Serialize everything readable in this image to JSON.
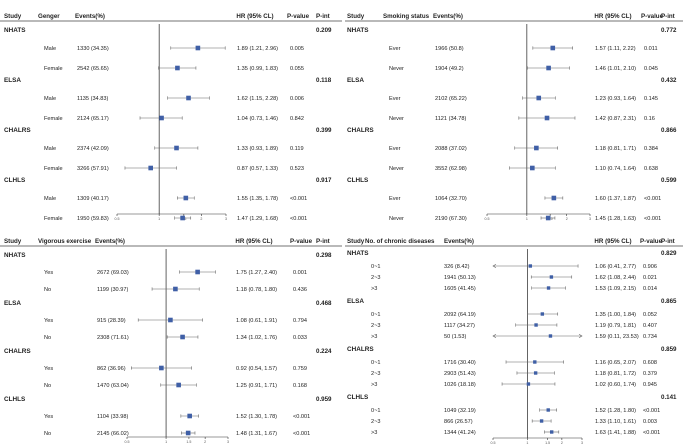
{
  "chart_data": [
    {
      "type": "forest",
      "column_headers": {
        "study": "Study",
        "group": "Genger",
        "events": "Events(%)",
        "hr": "HR (95% CL)",
        "p": "P-value",
        "pint": "P-int"
      },
      "axis": {
        "min": 0.5,
        "max": 3,
        "ref": 1,
        "ticks": [
          0.5,
          1,
          1.5,
          2,
          3
        ],
        "tick_labels": [
          "0.5",
          "1",
          "1.5",
          "2",
          "3"
        ]
      },
      "groups": [
        {
          "study": "NHATS",
          "p_int": "0.209",
          "rows": [
            {
              "label": "Male",
              "events": "1330 (34.35)",
              "hr": 1.89,
              "lo": 1.21,
              "hi": 2.96,
              "hr_text": "1.89 (1.21, 2.96)",
              "p": "0.005"
            },
            {
              "label": "Female",
              "events": "2542 (65.65)",
              "hr": 1.35,
              "lo": 0.99,
              "hi": 1.83,
              "hr_text": "1.35 (0.99, 1.83)",
              "p": "0.055"
            }
          ]
        },
        {
          "study": "ELSA",
          "p_int": "0.118",
          "rows": [
            {
              "label": "Male",
              "events": "1135 (34.83)",
              "hr": 1.62,
              "lo": 1.15,
              "hi": 2.28,
              "hr_text": "1.62 (1.15, 2.28)",
              "p": "0.006"
            },
            {
              "label": "Female",
              "events": "2124 (65.17)",
              "hr": 1.04,
              "lo": 0.73,
              "hi": 1.46,
              "hr_text": "1.04 (0.73, 1.46)",
              "p": "0.842"
            }
          ]
        },
        {
          "study": "CHALRS",
          "p_int": "0.399",
          "rows": [
            {
              "label": "Male",
              "events": "2374 (42.09)",
              "hr": 1.33,
              "lo": 0.93,
              "hi": 1.89,
              "hr_text": "1.33 (0.93, 1.89)",
              "p": "0.119"
            },
            {
              "label": "Female",
              "events": "3266 (57.91)",
              "hr": 0.87,
              "lo": 0.57,
              "hi": 1.33,
              "hr_text": "0.87 (0.57, 1.33)",
              "p": "0.523"
            }
          ]
        },
        {
          "study": "CLHLS",
          "p_int": "0.917",
          "rows": [
            {
              "label": "Male",
              "events": "1309 (40.17)",
              "hr": 1.55,
              "lo": 1.35,
              "hi": 1.78,
              "hr_text": "1.55 (1.35, 1.78)",
              "p": "<0.001"
            },
            {
              "label": "Female",
              "events": "1950 (59.83)",
              "hr": 1.47,
              "lo": 1.29,
              "hi": 1.68,
              "hr_text": "1.47 (1.29, 1.68)",
              "p": "<0.001"
            }
          ]
        }
      ]
    },
    {
      "type": "forest",
      "column_headers": {
        "study": "Study",
        "group": "Smoking status",
        "events": "Events(%)",
        "hr": "HR (95% CL)",
        "p": "P-value",
        "pint": "P-int"
      },
      "axis": {
        "min": 0.5,
        "max": 3,
        "ref": 1,
        "ticks": [
          0.5,
          1,
          1.5,
          2,
          3
        ],
        "tick_labels": [
          "0.5",
          "1",
          "1.5",
          "2",
          "3"
        ]
      },
      "groups": [
        {
          "study": "NHATS",
          "p_int": "0.772",
          "rows": [
            {
              "label": "Ever",
              "events": "1966 (50.8)",
              "hr": 1.57,
              "lo": 1.11,
              "hi": 2.22,
              "hr_text": "1.57 (1.11, 2.22)",
              "p": "0.011"
            },
            {
              "label": "Never",
              "events": "1904 (49.2)",
              "hr": 1.46,
              "lo": 1.01,
              "hi": 2.1,
              "hr_text": "1.46 (1.01, 2.10)",
              "p": "0.045"
            }
          ]
        },
        {
          "study": "ELSA",
          "p_int": "0.432",
          "rows": [
            {
              "label": "Ever",
              "events": "2102 (65.22)",
              "hr": 1.23,
              "lo": 0.93,
              "hi": 1.64,
              "hr_text": "1.23 (0.93, 1.64)",
              "p": "0.145"
            },
            {
              "label": "Never",
              "events": "1121 (34.78)",
              "hr": 1.42,
              "lo": 0.87,
              "hi": 2.31,
              "hr_text": "1.42 (0.87, 2.31)",
              "p": "0.16"
            }
          ]
        },
        {
          "study": "CHALRS",
          "p_int": "0.866",
          "rows": [
            {
              "label": "Ever",
              "events": "2088 (37.02)",
              "hr": 1.18,
              "lo": 0.81,
              "hi": 1.71,
              "hr_text": "1.18 (0.81, 1.71)",
              "p": "0.384"
            },
            {
              "label": "Never",
              "events": "3552 (62.98)",
              "hr": 1.1,
              "lo": 0.74,
              "hi": 1.64,
              "hr_text": "1.10 (0.74, 1.64)",
              "p": "0.638"
            }
          ]
        },
        {
          "study": "CLHLS",
          "p_int": "0.599",
          "rows": [
            {
              "label": "Ever",
              "events": "1064 (32.70)",
              "hr": 1.6,
              "lo": 1.37,
              "hi": 1.87,
              "hr_text": "1.60 (1.37, 1.87)",
              "p": "<0.001"
            },
            {
              "label": "Never",
              "events": "2190 (67.30)",
              "hr": 1.45,
              "lo": 1.28,
              "hi": 1.63,
              "hr_text": "1.45 (1.28, 1.63)",
              "p": "<0.001"
            }
          ]
        }
      ]
    },
    {
      "type": "forest",
      "column_headers": {
        "study": "Study",
        "group": "Vigorous exercise",
        "events": "Events(%)",
        "hr": "HR (95% CL)",
        "p": "P-value",
        "pint": "P-int"
      },
      "axis": {
        "min": 0.5,
        "max": 3,
        "ref": 1,
        "ticks": [
          0.5,
          1,
          1.5,
          2,
          3
        ],
        "tick_labels": [
          "0.5",
          "1",
          "1.5",
          "2",
          "3"
        ]
      },
      "groups": [
        {
          "study": "NHATS",
          "p_int": "0.298",
          "rows": [
            {
              "label": "Yes",
              "events": "2672 (69.03)",
              "hr": 1.75,
              "lo": 1.27,
              "hi": 2.4,
              "hr_text": "1.75 (1.27, 2.40)",
              "p": "0.001"
            },
            {
              "label": "No",
              "events": "1199 (30.97)",
              "hr": 1.18,
              "lo": 0.78,
              "hi": 1.8,
              "hr_text": "1.18 (0.78, 1.80)",
              "p": "0.436"
            }
          ]
        },
        {
          "study": "ELSA",
          "p_int": "0.468",
          "rows": [
            {
              "label": "Yes",
              "events": "915 (28.39)",
              "hr": 1.08,
              "lo": 0.61,
              "hi": 1.91,
              "hr_text": "1.08 (0.61, 1.91)",
              "p": "0.794"
            },
            {
              "label": "No",
              "events": "2308 (71.61)",
              "hr": 1.34,
              "lo": 1.02,
              "hi": 1.76,
              "hr_text": "1.34 (1.02, 1.76)",
              "p": "0.033"
            }
          ]
        },
        {
          "study": "CHALRS",
          "p_int": "0.224",
          "rows": [
            {
              "label": "Yes",
              "events": "862 (36.96)",
              "hr": 0.92,
              "lo": 0.54,
              "hi": 1.57,
              "hr_text": "0.92 (0.54, 1.57)",
              "p": "0.759"
            },
            {
              "label": "No",
              "events": "1470 (63.04)",
              "hr": 1.25,
              "lo": 0.91,
              "hi": 1.71,
              "hr_text": "1.25 (0.91, 1.71)",
              "p": "0.168"
            }
          ]
        },
        {
          "study": "CLHLS",
          "p_int": "0.959",
          "rows": [
            {
              "label": "Yes",
              "events": "1104 (33.98)",
              "hr": 1.52,
              "lo": 1.3,
              "hi": 1.78,
              "hr_text": "1.52 (1.30, 1.78)",
              "p": "<0.001"
            },
            {
              "label": "No",
              "events": "2145 (66.02)",
              "hr": 1.48,
              "lo": 1.31,
              "hi": 1.67,
              "hr_text": "1.48 (1.31, 1.67)",
              "p": "<0.001"
            }
          ]
        }
      ]
    },
    {
      "type": "forest",
      "column_headers": {
        "study": "Study",
        "group": "No. of chronic diseases",
        "events": "Events(%)",
        "hr": "HR (95% CL)",
        "p": "P-value",
        "pint": "P-int"
      },
      "axis": {
        "min": 0.5,
        "max": 3,
        "ref": 1,
        "ticks": [
          0.5,
          1,
          1.5,
          2,
          3
        ],
        "tick_labels": [
          "0.5",
          "1",
          "1.5",
          "2",
          "3"
        ]
      },
      "groups": [
        {
          "study": "NHATS",
          "p_int": "0.829",
          "rows": [
            {
              "label": "0~1",
              "events": "326 (8.42)",
              "hr": 1.06,
              "lo": 0.41,
              "hi": 2.77,
              "hr_text": "1.06 (0.41, 2.77)",
              "p": "0.906",
              "arrow_left": true
            },
            {
              "label": "2~3",
              "events": "1941 (50.13)",
              "hr": 1.62,
              "lo": 1.08,
              "hi": 2.44,
              "hr_text": "1.62 (1.08, 2.44)",
              "p": "0.021"
            },
            {
              "label": ">3",
              "events": "1605 (41.45)",
              "hr": 1.53,
              "lo": 1.09,
              "hi": 2.15,
              "hr_text": "1.53 (1.09, 2.15)",
              "p": "0.014"
            }
          ]
        },
        {
          "study": "ELSA",
          "p_int": "0.865",
          "rows": [
            {
              "label": "0~1",
              "events": "2092 (64.19)",
              "hr": 1.35,
              "lo": 1.0,
              "hi": 1.84,
              "hr_text": "1.35 (1.00, 1.84)",
              "p": "0.052"
            },
            {
              "label": "2~3",
              "events": "1117 (34.27)",
              "hr": 1.19,
              "lo": 0.79,
              "hi": 1.81,
              "hr_text": "1.19 (0.79, 1.81)",
              "p": "0.407"
            },
            {
              "label": ">3",
              "events": "50 (1.53)",
              "hr": 1.59,
              "lo": 0.11,
              "hi": 23.53,
              "hr_text": "1.59 (0.11, 23.53)",
              "p": "0.734",
              "arrow_left": true,
              "arrow_right": true
            }
          ]
        },
        {
          "study": "CHALRS",
          "p_int": "0.859",
          "rows": [
            {
              "label": "0~1",
              "events": "1716 (30.40)",
              "hr": 1.16,
              "lo": 0.65,
              "hi": 2.07,
              "hr_text": "1.16 (0.65, 2.07)",
              "p": "0.608"
            },
            {
              "label": "2~3",
              "events": "2903 (51.43)",
              "hr": 1.18,
              "lo": 0.81,
              "hi": 1.72,
              "hr_text": "1.18 (0.81, 1.72)",
              "p": "0.379"
            },
            {
              "label": ">3",
              "events": "1026 (18.18)",
              "hr": 1.02,
              "lo": 0.6,
              "hi": 1.74,
              "hr_text": "1.02 (0.60, 1.74)",
              "p": "0.945"
            }
          ]
        },
        {
          "study": "CLHLS",
          "p_int": "0.141",
          "rows": [
            {
              "label": "0~1",
              "events": "1049 (32.19)",
              "hr": 1.52,
              "lo": 1.28,
              "hi": 1.8,
              "hr_text": "1.52 (1.28, 1.80)",
              "p": "<0.001"
            },
            {
              "label": "2~3",
              "events": "866 (26.57)",
              "hr": 1.33,
              "lo": 1.1,
              "hi": 1.61,
              "hr_text": "1.33 (1.10, 1.61)",
              "p": "0.003"
            },
            {
              "label": ">3",
              "events": "1344 (41.24)",
              "hr": 1.63,
              "lo": 1.41,
              "hi": 1.88,
              "hr_text": "1.63 (1.41, 1.88)",
              "p": "<0.001"
            }
          ]
        }
      ]
    }
  ]
}
